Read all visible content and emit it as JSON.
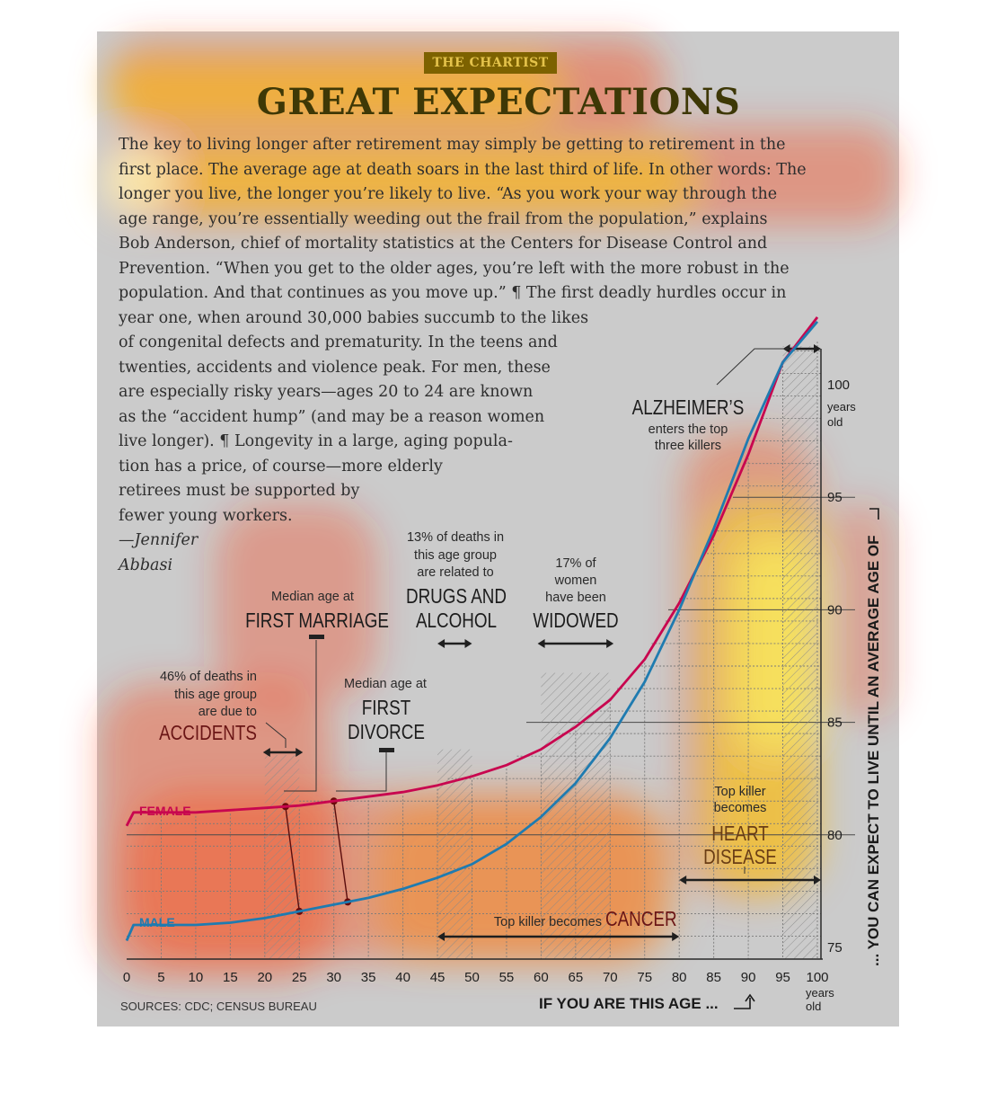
{
  "header": {
    "kicker": "THE CHARTIST",
    "title": "GREAT EXPECTATIONS"
  },
  "article": {
    "lines": [
      "The key to living longer after retirement may simply be getting to retirement in the",
      "first place. The average age at death soars in the last third of life. In other words: The",
      "longer you live, the longer you’re likely to live. “As you work your way through the",
      "age range, you’re essentially weeding out the frail from the population,” explains",
      "Bob Anderson, chief of mortality statistics at the Centers for Disease Control and",
      "Prevention. “When you get to the older ages, you’re left with the more robust in the",
      "population. And that continues as you move up.” ¶ The first deadly hurdles occur in",
      "year one, when around 30,000 babies succumb to the likes",
      "of congenital defects and prematurity. In the teens and",
      "twenties, accidents and violence peak. For men, these",
      "are especially risky years—ages 20 to 24 are known",
      "as the “accident hump” (and may be a reason women",
      "live longer). ¶ Longevity in a large, aging popula-",
      "tion has a price, of course—more elderly",
      "retirees must be supported by",
      "fewer young workers."
    ],
    "byline_1": "—Jennifer",
    "byline_2": "Abbasi"
  },
  "chart_data": {
    "type": "line",
    "title": "GREAT EXPECTATIONS",
    "xlabel": "IF YOU ARE THIS AGE ...",
    "ylabel": "... YOU CAN EXPECT TO LIVE UNTIL AN AVERAGE AGE OF",
    "xlim": [
      0,
      100
    ],
    "ylim": [
      75,
      102
    ],
    "x_ticks": [
      0,
      5,
      10,
      15,
      20,
      25,
      30,
      35,
      40,
      45,
      50,
      55,
      60,
      65,
      70,
      75,
      80,
      85,
      90,
      95,
      100
    ],
    "x_tick_labels": [
      "0",
      "5",
      "10",
      "15",
      "20",
      "25",
      "30",
      "35",
      "40",
      "45",
      "50",
      "55",
      "60",
      "65",
      "70",
      "75",
      "80",
      "85",
      "90",
      "95",
      "100"
    ],
    "y_ticks": [
      75,
      80,
      85,
      90,
      95,
      100
    ],
    "y_tick_labels": [
      "75",
      "80",
      "85",
      "90",
      "95",
      "100"
    ],
    "x_unit": "years old",
    "y_unit": "years old",
    "series": [
      {
        "name": "FEMALE",
        "color": "#c8064f",
        "x": [
          0,
          1,
          5,
          10,
          15,
          20,
          25,
          30,
          35,
          40,
          45,
          50,
          55,
          60,
          65,
          70,
          75,
          80,
          85,
          90,
          95,
          100
        ],
        "y": [
          80.4,
          81.0,
          81.0,
          81.0,
          81.1,
          81.2,
          81.3,
          81.5,
          81.7,
          81.9,
          82.2,
          82.6,
          83.1,
          83.8,
          84.8,
          86.0,
          87.8,
          90.3,
          93.3,
          96.9,
          101.0,
          103.0
        ]
      },
      {
        "name": "MALE",
        "color": "#1f7bb0",
        "x": [
          0,
          1,
          5,
          10,
          15,
          20,
          25,
          30,
          35,
          40,
          45,
          50,
          55,
          60,
          65,
          70,
          75,
          80,
          85,
          90,
          95,
          100
        ],
        "y": [
          75.3,
          76.0,
          76.0,
          76.0,
          76.1,
          76.3,
          76.6,
          76.9,
          77.2,
          77.6,
          78.1,
          78.7,
          79.6,
          80.8,
          82.3,
          84.3,
          86.8,
          90.0,
          93.6,
          97.6,
          101.0,
          102.8
        ]
      }
    ],
    "shaded_ranges": [
      {
        "from": 20,
        "to": 25
      },
      {
        "from": 45,
        "to": 50
      },
      {
        "from": 60,
        "to": 70
      },
      {
        "from": 95,
        "to": 100
      }
    ],
    "annotations": {
      "accidents": {
        "note": "46% of deaths in this age group are due to",
        "label": "ACCIDENTS",
        "range": [
          20,
          25
        ]
      },
      "marriage": {
        "note": "Median age at",
        "label": "FIRST MARRIAGE",
        "age_female": 23,
        "age_male": 25
      },
      "divorce": {
        "note": "Median age at",
        "label_1": "FIRST",
        "label_2": "DIVORCE",
        "age_female": 30,
        "age_male": 32
      },
      "drugs": {
        "note": "13% of deaths in this age group are related to",
        "label_1": "DRUGS AND",
        "label_2": "ALCOHOL",
        "range": [
          45,
          50
        ]
      },
      "widowed": {
        "note": "17% of women have been",
        "label": "WIDOWED",
        "range": [
          60,
          70
        ]
      },
      "alzheimers": {
        "label": "ALZHEIMER’S",
        "note": "enters the top three killers",
        "range": [
          95,
          100
        ]
      },
      "heart": {
        "note_1": "Top killer",
        "note_2": "becomes",
        "label_1": "HEART",
        "label_2": "DISEASE",
        "range": [
          80,
          100
        ]
      },
      "cancer": {
        "note": "Top killer becomes",
        "label": "CANCER",
        "range": [
          45,
          80
        ]
      }
    },
    "source": "SOURCES: CDC; CENSUS BUREAU"
  }
}
